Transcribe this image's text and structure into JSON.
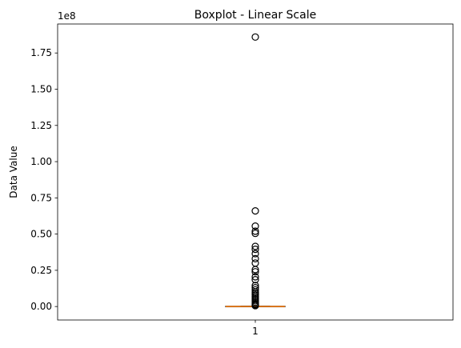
{
  "chart_data": {
    "type": "boxplot",
    "title": "Boxplot - Linear Scale",
    "xlabel": "",
    "ylabel": "Data Value",
    "y_offset_text": "1e8",
    "ylim": [
      -0.093,
      1.95
    ],
    "y_ticks": [
      0.0,
      0.25,
      0.5,
      0.75,
      1.0,
      1.25,
      1.5,
      1.75
    ],
    "y_tick_labels": [
      "0.00",
      "0.25",
      "0.50",
      "0.75",
      "1.00",
      "1.25",
      "1.50",
      "1.75"
    ],
    "y_multiplier": 100000000,
    "x_ticks": [
      1
    ],
    "x_tick_labels": [
      "1"
    ],
    "xlim": [
      0.5,
      1.5
    ],
    "boxes": [
      {
        "position": 1,
        "q1": 0.0,
        "median": 0.0,
        "q3": 0.0,
        "whisker_low": 0.0,
        "whisker_high": 0.002,
        "outliers": [
          1.86,
          0.66,
          0.555,
          0.52,
          0.505,
          0.415,
          0.395,
          0.365,
          0.33,
          0.3,
          0.255,
          0.24,
          0.205,
          0.185,
          0.145,
          0.13,
          0.115,
          0.1,
          0.09,
          0.08,
          0.07,
          0.06,
          0.05,
          0.04,
          0.03,
          0.02,
          0.015,
          0.01,
          0.006
        ]
      }
    ],
    "colors": {
      "box": "#000000",
      "median": "#ff7f0e",
      "outlier": "#000000"
    },
    "grid": false,
    "legend": "none"
  }
}
